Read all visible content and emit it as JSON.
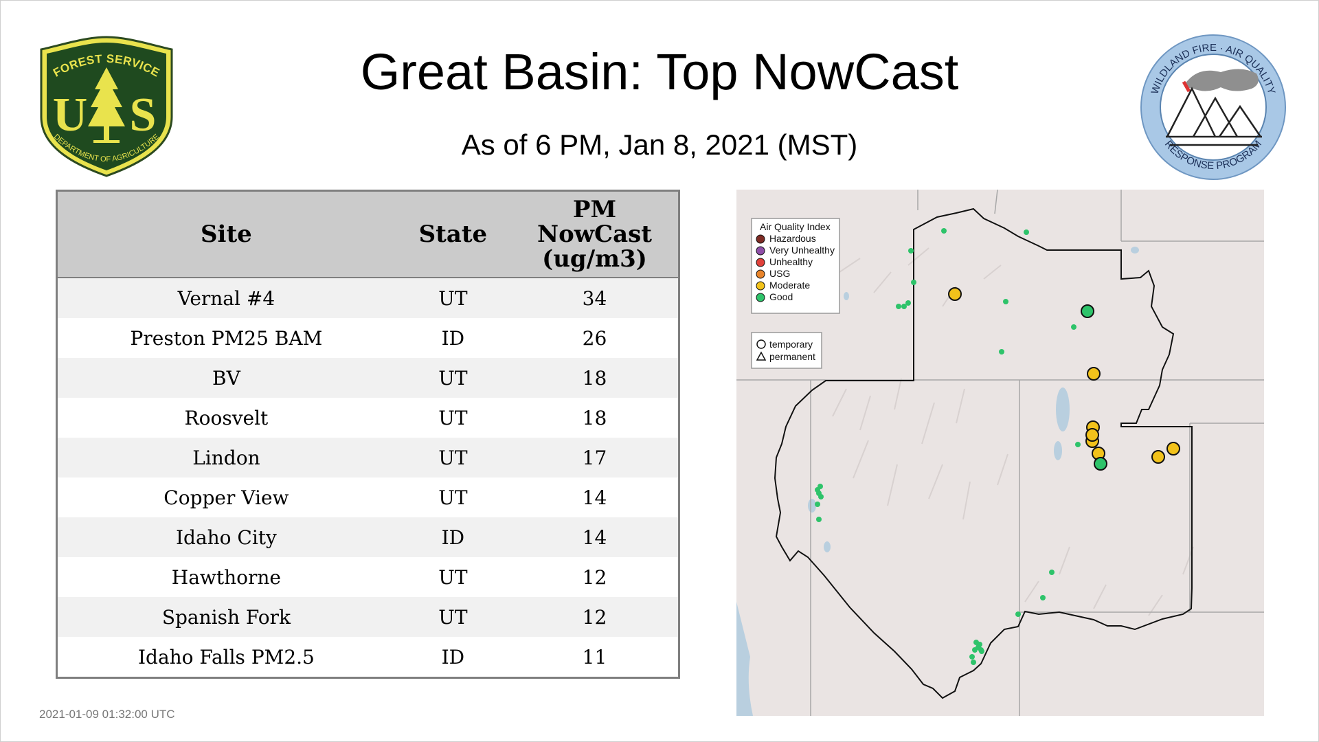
{
  "header": {
    "title": "Great Basin: Top NowCast",
    "subtitle": "As of  6 PM, Jan  8, 2021 (MST)"
  },
  "logos": {
    "forest_service": {
      "icon": "forest-service-shield-icon",
      "top_text": "FOREST SERVICE",
      "letters_left": "U",
      "letters_right": "S",
      "bottom_text": "DEPARTMENT OF AGRICULTURE"
    },
    "wildland_fire": {
      "icon": "wildland-fire-air-quality-seal-icon",
      "top_text": "WILDLAND FIRE · AIR QUALITY",
      "bottom_text": "RESPONSE PROGRAM"
    }
  },
  "table": {
    "headers": {
      "site": "Site",
      "state": "State",
      "value_line1": "PM",
      "value_line2": "NowCast",
      "value_line3": "(ug/m3)"
    },
    "rows": [
      {
        "site": "Vernal #4",
        "state": "UT",
        "value": "34"
      },
      {
        "site": "Preston PM25 BAM",
        "state": "ID",
        "value": "26"
      },
      {
        "site": "BV",
        "state": "UT",
        "value": "18"
      },
      {
        "site": "Roosvelt",
        "state": "UT",
        "value": "18"
      },
      {
        "site": "Lindon",
        "state": "UT",
        "value": "17"
      },
      {
        "site": "Copper View",
        "state": "UT",
        "value": "14"
      },
      {
        "site": "Idaho City",
        "state": "ID",
        "value": "14"
      },
      {
        "site": "Hawthorne",
        "state": "UT",
        "value": "12"
      },
      {
        "site": "Spanish Fork",
        "state": "UT",
        "value": "12"
      },
      {
        "site": "Idaho Falls PM2.5",
        "state": "ID",
        "value": "11"
      }
    ]
  },
  "timestamp": "2021-01-09 01:32:00 UTC",
  "map": {
    "legend": {
      "title": "Air Quality Index",
      "categories": [
        {
          "label": "Hazardous",
          "color": "#7e2b24"
        },
        {
          "label": "Very Unhealthy",
          "color": "#8f4fa8"
        },
        {
          "label": "Unhealthy",
          "color": "#e0413a"
        },
        {
          "label": "USG",
          "color": "#e8842a"
        },
        {
          "label": "Moderate",
          "color": "#f2c21b"
        },
        {
          "label": "Good",
          "color": "#2ec36a"
        }
      ],
      "shapes": [
        {
          "label": "temporary",
          "icon": "circle-icon"
        },
        {
          "label": "permanent",
          "icon": "triangle-icon"
        }
      ]
    },
    "colors": {
      "moderate": "#f2c21b",
      "good": "#2ec36a",
      "water": "#b9cfdf",
      "land": "#eae4e3"
    }
  }
}
